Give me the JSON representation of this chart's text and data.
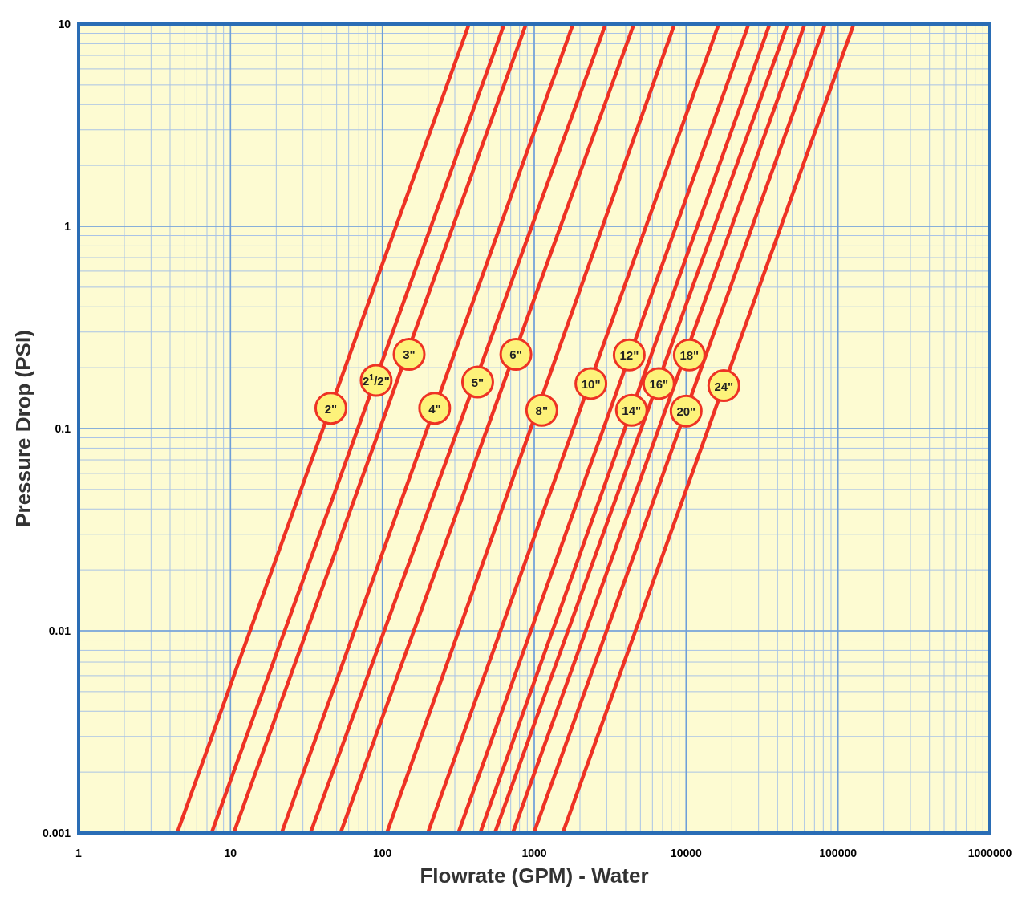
{
  "chart_data": {
    "type": "line",
    "xlabel": "Flowrate (GPM) - Water",
    "ylabel": "Pressure Drop (PSI)",
    "log": "xy",
    "grid": true,
    "line_style": "solid",
    "marker": "none",
    "xlim": [
      1,
      1000000
    ],
    "xticks": [
      1,
      10,
      100,
      1000,
      10000,
      100000,
      1000000
    ],
    "ylim": [
      0.001,
      10
    ],
    "yticks": [
      {
        "value": 0.001,
        "label": "0.001"
      },
      {
        "value": 0.01,
        "label": "0.01"
      },
      {
        "value": 0.1,
        "label": "0.1"
      },
      1,
      10
    ],
    "series": [
      {
        "color": "#ee3224",
        "x": [
          4.45,
          372
        ],
        "values": [
          0.001,
          10
        ]
      },
      {
        "color": "#ee3224",
        "x": [
          7.5,
          634
        ],
        "values": [
          0.001,
          10
        ]
      },
      {
        "color": "#ee3224",
        "x": [
          10.5,
          883
        ],
        "values": [
          0.001,
          10
        ]
      },
      {
        "color": "#ee3224",
        "x": [
          21.7,
          1800
        ],
        "values": [
          0.001,
          10
        ]
      },
      {
        "color": "#ee3224",
        "x": [
          33.6,
          2950
        ],
        "values": [
          0.001,
          10
        ]
      },
      {
        "color": "#ee3224",
        "x": [
          53,
          4530
        ],
        "values": [
          0.001,
          10
        ]
      },
      {
        "color": "#ee3224",
        "x": [
          107,
          8380
        ],
        "values": [
          0.001,
          10
        ]
      },
      {
        "color": "#ee3224",
        "x": [
          199,
          16400
        ],
        "values": [
          0.001,
          10
        ]
      },
      {
        "color": "#ee3224",
        "x": [
          316,
          25800
        ],
        "values": [
          0.001,
          10
        ]
      },
      {
        "color": "#ee3224",
        "x": [
          440,
          35500
        ],
        "values": [
          0.001,
          10
        ]
      },
      {
        "color": "#ee3224",
        "x": [
          550,
          46600
        ],
        "values": [
          0.001,
          10
        ]
      },
      {
        "color": "#ee3224",
        "x": [
          722,
          60400
        ],
        "values": [
          0.001,
          10
        ]
      },
      {
        "color": "#ee3224",
        "x": [
          994,
          82200
        ],
        "values": [
          0.001,
          10
        ]
      },
      {
        "color": "#ee3224",
        "x": [
          1540,
          127000
        ],
        "values": [
          0.001,
          10
        ]
      }
    ],
    "annotations": [
      {
        "text": "2\"",
        "x": 45.8,
        "y": 0.126
      },
      {
        "text": "2$^{1}$/2\"",
        "x": 91,
        "y": 0.173
      },
      {
        "text": "3\"",
        "x": 150,
        "y": 0.233
      },
      {
        "text": "4\"",
        "x": 221,
        "y": 0.126
      },
      {
        "text": "5\"",
        "x": 424,
        "y": 0.17
      },
      {
        "text": "6\"",
        "x": 757,
        "y": 0.233
      },
      {
        "text": "8\"",
        "x": 1120,
        "y": 0.123
      },
      {
        "text": "10\"",
        "x": 2360,
        "y": 0.167
      },
      {
        "text": "12\"",
        "x": 4220,
        "y": 0.231
      },
      {
        "text": "14\"",
        "x": 4370,
        "y": 0.123
      },
      {
        "text": "16\"",
        "x": 6610,
        "y": 0.167
      },
      {
        "text": "18\"",
        "x": 10500,
        "y": 0.231
      },
      {
        "text": "20\"",
        "x": 10000,
        "y": 0.122
      },
      {
        "text": "24\"",
        "x": 17700,
        "y": 0.163
      }
    ]
  }
}
